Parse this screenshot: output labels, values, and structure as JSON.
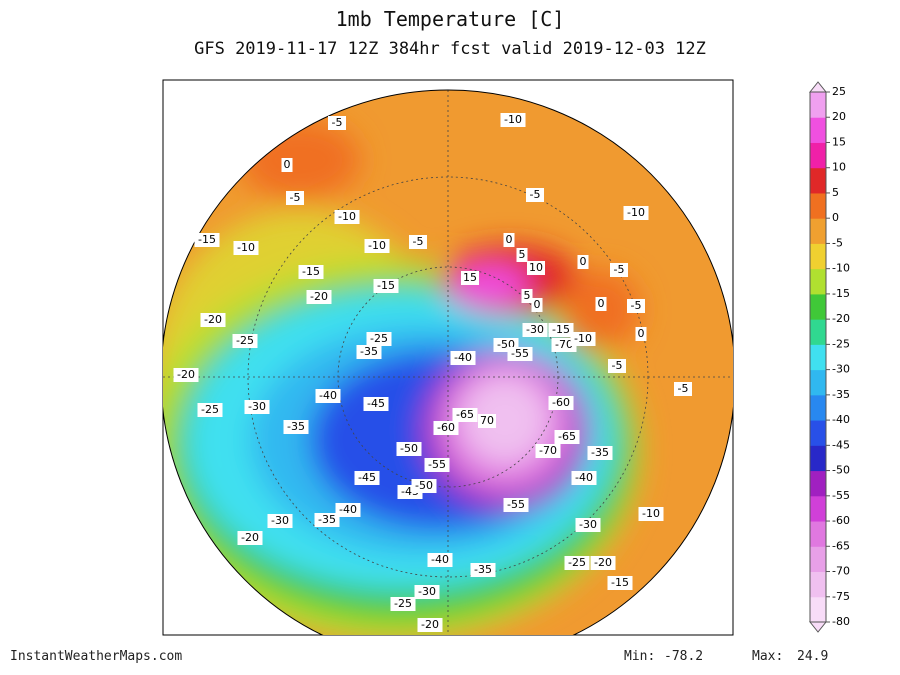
{
  "title": "1mb Temperature [C]",
  "subtitle": "GFS 2019-11-17 12Z 384hr fcst valid 2019-12-03 12Z",
  "colorbar": {
    "ticks": [
      -80,
      -75,
      -70,
      -65,
      -60,
      -55,
      -50,
      -45,
      -40,
      -35,
      -30,
      -25,
      -20,
      -15,
      -10,
      -5,
      0,
      5,
      10,
      15,
      20,
      25
    ],
    "colors": [
      "#f8dcf8",
      "#f0c0f0",
      "#e8a0e8",
      "#e078e0",
      "#d040d8",
      "#a020c0",
      "#2828c8",
      "#2850e8",
      "#2888f0",
      "#30b8f0",
      "#40e0f0",
      "#30d890",
      "#40c838",
      "#b0e030",
      "#f0d030",
      "#f0a030",
      "#f07020",
      "#e02828",
      "#f020a8",
      "#f050e0",
      "#f0a0f0"
    ]
  },
  "contour_labels": [
    -5,
    -10,
    0,
    -5,
    -10,
    -5,
    -10,
    -15,
    -10,
    -10,
    -5,
    0,
    5,
    10,
    0,
    -5,
    -15,
    15,
    -20,
    -15,
    5,
    0,
    0,
    -5,
    -20,
    -25,
    -30,
    -15,
    0,
    -25,
    -35,
    -50,
    -55,
    -70,
    -10,
    -40,
    -20,
    -5,
    -5,
    -25,
    -30,
    -40,
    -45,
    -60,
    -35,
    -65,
    70,
    -60,
    -65,
    -50,
    -70,
    -35,
    -55,
    -40,
    -45,
    -45,
    -50,
    -55,
    -40,
    -35,
    -30,
    -10,
    -30,
    -20,
    -40,
    -35,
    -25,
    -20,
    -15,
    -30,
    -25,
    -20
  ],
  "footer": {
    "source": "InstantWeatherMaps.com",
    "min_label": "Min:",
    "min": -78.2,
    "max_label": "Max:",
    "max": 24.9
  }
}
